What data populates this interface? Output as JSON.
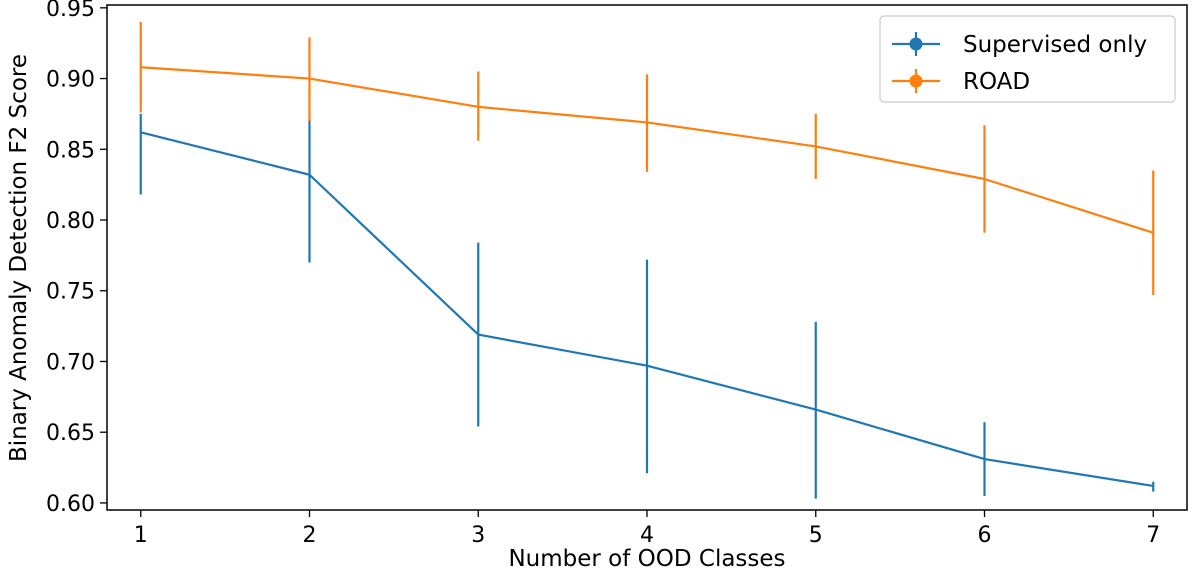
{
  "chart_data": {
    "type": "line",
    "title": "",
    "xlabel": "Number of OOD Classes",
    "ylabel": "Binary Anomaly Detection F2 Score",
    "x": [
      1,
      2,
      3,
      4,
      5,
      6,
      7
    ],
    "xlim": [
      0.8,
      7.2
    ],
    "ylim": [
      0.595,
      0.952
    ],
    "xticks": [
      "1",
      "2",
      "3",
      "4",
      "5",
      "6",
      "7"
    ],
    "yticks": [
      "0.60",
      "0.65",
      "0.70",
      "0.75",
      "0.80",
      "0.85",
      "0.90",
      "0.95"
    ],
    "grid": false,
    "legend_position": "top-right",
    "series": [
      {
        "name": "Supervised only",
        "color": "#1f77b4",
        "values": [
          0.862,
          0.832,
          0.719,
          0.697,
          0.666,
          0.631,
          0.612
        ],
        "err_low": [
          0.818,
          0.77,
          0.654,
          0.621,
          0.603,
          0.605,
          0.608
        ],
        "err_high": [
          0.875,
          0.871,
          0.784,
          0.772,
          0.728,
          0.657,
          0.615
        ]
      },
      {
        "name": "ROAD",
        "color": "#ff7f0e",
        "values": [
          0.908,
          0.9,
          0.88,
          0.869,
          0.852,
          0.829,
          0.791
        ],
        "err_low": [
          0.876,
          0.87,
          0.856,
          0.834,
          0.829,
          0.791,
          0.747
        ],
        "err_high": [
          0.94,
          0.929,
          0.905,
          0.903,
          0.875,
          0.867,
          0.835
        ]
      }
    ]
  }
}
